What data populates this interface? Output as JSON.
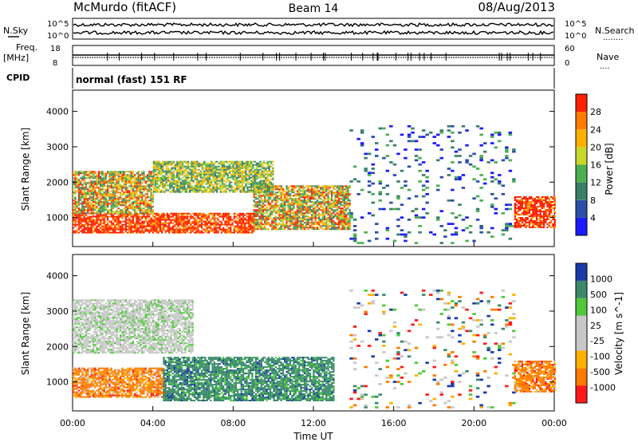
{
  "header": {
    "station": "McMurdo (fitACF)",
    "beam": "Beam 14",
    "date": "08/Aug/2013"
  },
  "top_strip": {
    "left_label": "N.Sky",
    "right_label": "N.Search",
    "right_dots": "........",
    "tick_top": "10^5",
    "tick_bottom": "10^0"
  },
  "freq_strip": {
    "left_label_1": "Freq.",
    "left_label_2": "[MHz]",
    "left_tick_top": "18",
    "left_tick_bottom": "8",
    "right_label": "Nave",
    "right_dots": "....",
    "right_tick_top": "60",
    "right_tick_bottom": "0"
  },
  "cpid": {
    "label": "CPID",
    "program": "normal (fast) 151 RF"
  },
  "colors": {
    "power_scale": [
      "#1a1aff",
      "#2a4fa8",
      "#3a7f6a",
      "#4caf50",
      "#c8d82a",
      "#ffb000",
      "#ff7a00",
      "#ff2000"
    ],
    "velocity_scale": [
      "#ff1a1a",
      "#ff7a00",
      "#ffb000",
      "#c8c8c8",
      "#c8c8c8",
      "#4fc83a",
      "#3a8a6a",
      "#1a3aa8"
    ]
  },
  "chart_data": [
    {
      "type": "heatmap",
      "title": "Power",
      "xlabel": "Time UT",
      "ylabel": "Slant Range [km]",
      "x_ticks": [
        "00:00",
        "04:00",
        "08:00",
        "12:00",
        "16:00",
        "20:00",
        "00:00"
      ],
      "y_ticks": [
        1000,
        2000,
        3000,
        4000
      ],
      "xlim": [
        0,
        24
      ],
      "ylim": [
        180,
        4600
      ],
      "colorbar": {
        "label": "Power [dB]",
        "ticks": [
          "4",
          "8",
          "12",
          "16",
          "20",
          "24",
          "28"
        ]
      },
      "regions": [
        {
          "x": [
            0.0,
            9.0
          ],
          "y": [
            550,
            1100
          ],
          "level": "high"
        },
        {
          "x": [
            9.0,
            13.8
          ],
          "y": [
            650,
            1900
          ],
          "level": "mixed"
        },
        {
          "x": [
            0.0,
            4.0
          ],
          "y": [
            1100,
            2300
          ],
          "level": "mixed"
        },
        {
          "x": [
            4.0,
            10.0
          ],
          "y": [
            1700,
            2600
          ],
          "level": "medium"
        },
        {
          "x": [
            13.8,
            22.0
          ],
          "y": [
            250,
            3600
          ],
          "level": "scattered"
        },
        {
          "x": [
            22.0,
            24.0
          ],
          "y": [
            700,
            1600
          ],
          "level": "high"
        }
      ]
    },
    {
      "type": "heatmap",
      "title": "Velocity",
      "xlabel": "Time UT",
      "ylabel": "Slant Range [km]",
      "x_ticks": [
        "00:00",
        "04:00",
        "08:00",
        "12:00",
        "16:00",
        "20:00",
        "00:00"
      ],
      "y_ticks": [
        1000,
        2000,
        3000,
        4000
      ],
      "xlim": [
        0,
        24
      ],
      "ylim": [
        180,
        4600
      ],
      "colorbar": {
        "label": "Velocity [m s^-1]",
        "ticks": [
          "1000",
          "500",
          "100",
          "25",
          "-25",
          "-100",
          "-500",
          "-1000"
        ]
      },
      "regions": [
        {
          "x": [
            0.0,
            4.5
          ],
          "y": [
            550,
            1400
          ],
          "level": "negative"
        },
        {
          "x": [
            4.5,
            13.0
          ],
          "y": [
            450,
            1700
          ],
          "level": "positive"
        },
        {
          "x": [
            0.0,
            6.0
          ],
          "y": [
            1800,
            3300
          ],
          "level": "near-zero"
        },
        {
          "x": [
            13.8,
            22.0
          ],
          "y": [
            250,
            3600
          ],
          "level": "scattered"
        },
        {
          "x": [
            22.0,
            24.0
          ],
          "y": [
            700,
            1600
          ],
          "level": "negative"
        }
      ]
    }
  ]
}
